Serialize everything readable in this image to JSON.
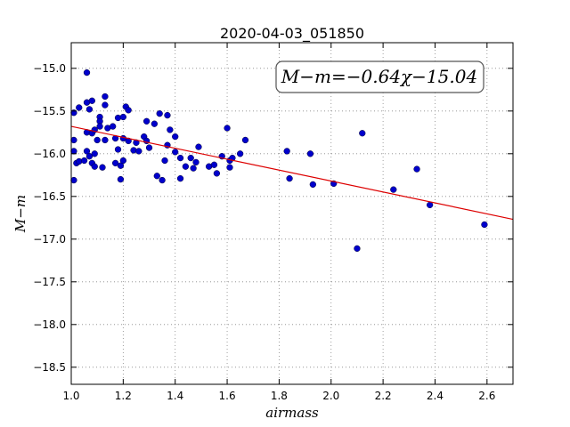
{
  "chart_data": {
    "type": "scatter",
    "title": "2020-04-03_051850",
    "xlabel": "airmass",
    "ylabel": "M−m",
    "xlim": [
      1.0,
      2.7
    ],
    "ylim": [
      -18.7,
      -14.7
    ],
    "y_inverted": true,
    "x_ticks": [
      1.0,
      1.2,
      1.4,
      1.6,
      1.8,
      2.0,
      2.2,
      2.4,
      2.6
    ],
    "x_tick_labels": [
      "1.0",
      "1.2",
      "1.4",
      "1.6",
      "1.8",
      "2.0",
      "2.2",
      "2.4",
      "2.6"
    ],
    "y_ticks": [
      -15.0,
      -15.5,
      -16.0,
      -16.5,
      -17.0,
      -17.5,
      -18.0,
      -18.5
    ],
    "y_tick_labels": [
      "−15.0",
      "−15.5",
      "−16.0",
      "−16.5",
      "−17.0",
      "−17.5",
      "−18.0",
      "−18.5"
    ],
    "grid": true,
    "annotation": "M−m=−0.64χ−15.04",
    "fit": {
      "slope": -0.64,
      "intercept": -15.04,
      "color": "#dd0000"
    },
    "point_color": "#0000cc",
    "points": [
      [
        1.01,
        -15.52
      ],
      [
        1.01,
        -15.84
      ],
      [
        1.01,
        -15.97
      ],
      [
        1.01,
        -16.31
      ],
      [
        1.02,
        -16.11
      ],
      [
        1.03,
        -15.46
      ],
      [
        1.03,
        -16.09
      ],
      [
        1.05,
        -16.08
      ],
      [
        1.06,
        -15.05
      ],
      [
        1.06,
        -15.4
      ],
      [
        1.06,
        -15.75
      ],
      [
        1.06,
        -15.97
      ],
      [
        1.07,
        -15.48
      ],
      [
        1.07,
        -16.03
      ],
      [
        1.08,
        -15.38
      ],
      [
        1.08,
        -15.76
      ],
      [
        1.08,
        -16.11
      ],
      [
        1.09,
        -15.72
      ],
      [
        1.09,
        -16.0
      ],
      [
        1.09,
        -16.15
      ],
      [
        1.1,
        -15.84
      ],
      [
        1.11,
        -15.57
      ],
      [
        1.11,
        -15.62
      ],
      [
        1.11,
        -15.68
      ],
      [
        1.12,
        -16.16
      ],
      [
        1.13,
        -15.43
      ],
      [
        1.13,
        -15.84
      ],
      [
        1.13,
        -15.33
      ],
      [
        1.14,
        -15.7
      ],
      [
        1.16,
        -15.68
      ],
      [
        1.17,
        -15.82
      ],
      [
        1.17,
        -16.11
      ],
      [
        1.18,
        -15.58
      ],
      [
        1.18,
        -15.95
      ],
      [
        1.19,
        -16.14
      ],
      [
        1.19,
        -16.3
      ],
      [
        1.2,
        -16.08
      ],
      [
        1.2,
        -15.82
      ],
      [
        1.2,
        -15.57
      ],
      [
        1.21,
        -15.45
      ],
      [
        1.22,
        -15.49
      ],
      [
        1.22,
        -15.85
      ],
      [
        1.24,
        -15.96
      ],
      [
        1.25,
        -15.87
      ],
      [
        1.26,
        -15.97
      ],
      [
        1.28,
        -15.8
      ],
      [
        1.29,
        -15.85
      ],
      [
        1.29,
        -15.62
      ],
      [
        1.3,
        -15.93
      ],
      [
        1.32,
        -15.65
      ],
      [
        1.33,
        -16.26
      ],
      [
        1.34,
        -15.53
      ],
      [
        1.35,
        -16.31
      ],
      [
        1.36,
        -16.08
      ],
      [
        1.37,
        -15.55
      ],
      [
        1.37,
        -15.9
      ],
      [
        1.38,
        -15.72
      ],
      [
        1.4,
        -15.8
      ],
      [
        1.4,
        -15.98
      ],
      [
        1.42,
        -16.05
      ],
      [
        1.42,
        -16.29
      ],
      [
        1.44,
        -16.15
      ],
      [
        1.46,
        -16.05
      ],
      [
        1.47,
        -16.17
      ],
      [
        1.48,
        -16.1
      ],
      [
        1.49,
        -15.92
      ],
      [
        1.53,
        -16.15
      ],
      [
        1.55,
        -16.13
      ],
      [
        1.56,
        -16.23
      ],
      [
        1.58,
        -16.03
      ],
      [
        1.6,
        -15.7
      ],
      [
        1.61,
        -16.08
      ],
      [
        1.61,
        -16.16
      ],
      [
        1.62,
        -16.05
      ],
      [
        1.65,
        -16.0
      ],
      [
        1.67,
        -15.84
      ],
      [
        1.83,
        -15.97
      ],
      [
        1.84,
        -16.29
      ],
      [
        1.92,
        -16.0
      ],
      [
        1.93,
        -16.36
      ],
      [
        2.01,
        -16.35
      ],
      [
        2.1,
        -17.11
      ],
      [
        2.12,
        -15.76
      ],
      [
        2.24,
        -16.42
      ],
      [
        2.33,
        -16.18
      ],
      [
        2.38,
        -16.6
      ],
      [
        2.59,
        -16.83
      ]
    ]
  }
}
